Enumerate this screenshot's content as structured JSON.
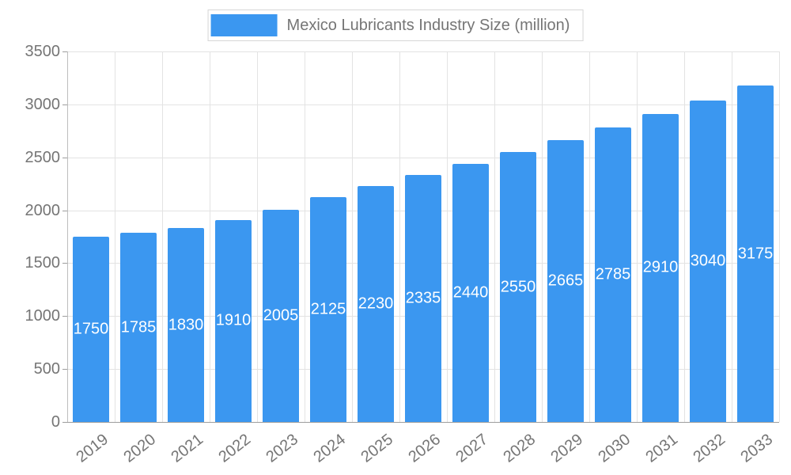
{
  "chart_data": {
    "type": "bar",
    "title": "Mexico Lubricants Industry Size (million)",
    "categories": [
      "2019",
      "2020",
      "2021",
      "2022",
      "2023",
      "2024",
      "2025",
      "2026",
      "2027",
      "2028",
      "2029",
      "2030",
      "2031",
      "2032",
      "2033"
    ],
    "values": [
      1750,
      1785,
      1830,
      1910,
      2005,
      2125,
      2230,
      2335,
      2440,
      2550,
      2665,
      2785,
      2910,
      3040,
      3175
    ],
    "xlabel": "",
    "ylabel": "",
    "ylim": [
      0,
      3500
    ],
    "yticks": [
      0,
      500,
      1000,
      1500,
      2000,
      2500,
      3000,
      3500
    ],
    "grid": true,
    "legend_position": "top",
    "bar_color": "#3b97f0",
    "bar_label_color": "#ffffff",
    "axis_text_color": "#757575",
    "grid_color": "#e3e3e3",
    "axis_line_color": "#9e9e9e"
  }
}
